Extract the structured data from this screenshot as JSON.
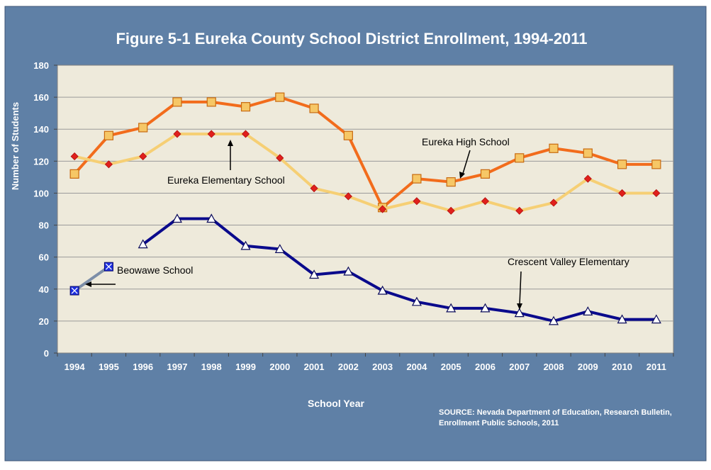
{
  "chart_data": {
    "type": "line",
    "title": "Figure 5-1 Eureka County School District Enrollment, 1994-2011",
    "xlabel": "School Year",
    "ylabel": "Number of Students",
    "ylim": [
      0,
      180
    ],
    "yticks": [
      "0",
      "20",
      "40",
      "60",
      "80",
      "100",
      "120",
      "140",
      "160",
      "180"
    ],
    "categories": [
      "1994",
      "1995",
      "1996",
      "1997",
      "1998",
      "1999",
      "2000",
      "2001",
      "2002",
      "2003",
      "2004",
      "2005",
      "2006",
      "2007",
      "2008",
      "2009",
      "2010",
      "2011"
    ],
    "grid": true,
    "legend": "none",
    "series": [
      {
        "name": "Eureka High School",
        "color": "#f26c1c",
        "marker": "square",
        "values": [
          112,
          136,
          141,
          157,
          157,
          154,
          160,
          153,
          136,
          91,
          109,
          107,
          112,
          122,
          128,
          125,
          118,
          118
        ]
      },
      {
        "name": "Eureka Elementary School",
        "color": "#f6cf74",
        "marker": "diamond",
        "values": [
          123,
          118,
          123,
          137,
          137,
          137,
          122,
          103,
          98,
          90,
          95,
          89,
          95,
          89,
          94,
          109,
          100,
          100
        ]
      },
      {
        "name": "Crescent Valley Elementary",
        "color": "#0a0a8c",
        "marker": "triangle",
        "values": [
          null,
          null,
          68,
          84,
          84,
          67,
          65,
          49,
          51,
          39,
          32,
          28,
          28,
          25,
          20,
          26,
          21,
          21
        ]
      },
      {
        "name": "Beowawe School",
        "color": "#7c8ea8",
        "marker": "x-square",
        "values": [
          39,
          54,
          null,
          null,
          null,
          null,
          null,
          null,
          null,
          null,
          null,
          null,
          null,
          null,
          null,
          null,
          null,
          null
        ]
      }
    ],
    "source": "SOURCE: Nevada Department of Education, Research Bulletin,\nEnrollment Public Schools,  2011"
  },
  "colors": {
    "background": "#5f80a6",
    "plot_area": "#eeeadb",
    "title_text": "#ffffff"
  }
}
